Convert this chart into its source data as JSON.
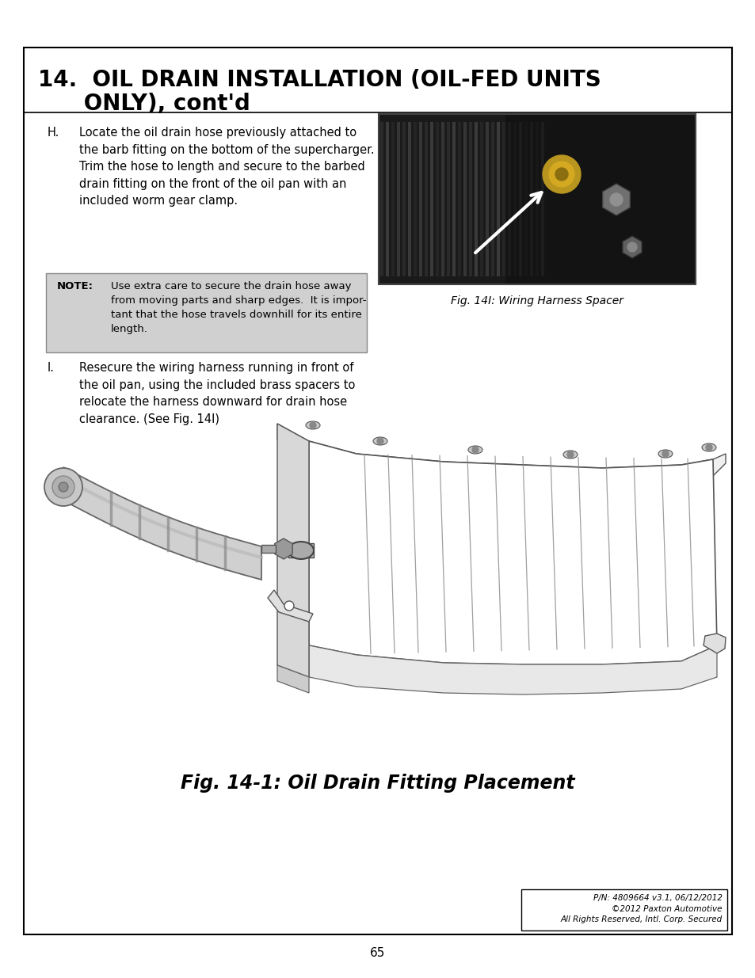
{
  "page_bg": "#ffffff",
  "border_color": "#000000",
  "title_line1": "14.  OIL DRAIN INSTALLATION (OIL-FED UNITS",
  "title_line2": "      ONLY), cont'd",
  "section_H_label": "H.",
  "section_H_text": "Locate the oil drain hose previously attached to\nthe barb fitting on the bottom of the supercharger.\nTrim the hose to length and secure to the barbed\ndrain fitting on the front of the oil pan with an\nincluded worm gear clamp.",
  "note_label": "NOTE:",
  "note_text": "Use extra care to secure the drain hose away\nfrom moving parts and sharp edges.  It is impor-\ntant that the hose travels downhill for its entire\nlength.",
  "note_bg": "#d0d0d0",
  "section_I_label": "I.",
  "section_I_text": "Resecure the wiring harness running in front of\nthe oil pan, using the included brass spacers to\nrelocate the harness downward for drain hose\nclearance. (See Fig. 14I)",
  "fig_caption": "Fig. 14I: Wiring Harness Spacer",
  "fig14_caption": "Fig. 14-1: Oil Drain Fitting Placement",
  "page_number": "65",
  "footer_line1": "P/N: 4809664 v3.1, 06/12/2012",
  "footer_line2": "©2012 Paxton Automotive",
  "footer_line3": "All Rights Reserved, Intl. Corp. Secured",
  "title_fontsize": 20,
  "body_fontsize": 10.5,
  "note_fontsize": 9.5,
  "caption_fontsize": 10
}
